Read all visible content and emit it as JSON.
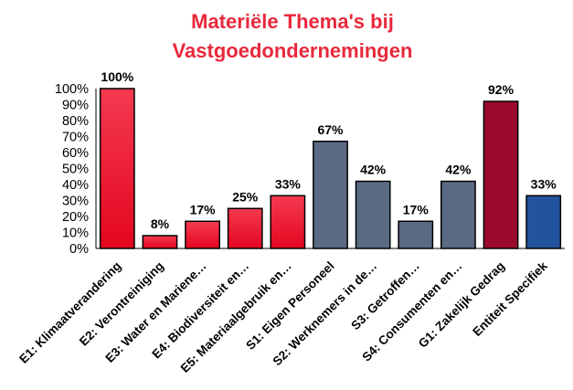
{
  "chart_data": {
    "type": "bar",
    "title_lines": [
      "Materiële Thema's bij",
      "Vastgoedondernemingen"
    ],
    "xlabel": "",
    "ylabel": "",
    "ylim": [
      0,
      100
    ],
    "y_ticks": [
      "0%",
      "10%",
      "20%",
      "30%",
      "40%",
      "50%",
      "60%",
      "70%",
      "80%",
      "90%",
      "100%"
    ],
    "categories": [
      "E1: Klimaatverandering",
      "E2: Verontreiniging",
      "E3: Water en Mariene…",
      "E4: Biodiversiteit en…",
      "E5: Materiaalgebruik en…",
      "S1: Eigen Personeel",
      "S2: Werknemers in de…",
      "S3: Getroffen…",
      "S4: Consumenten en…",
      "G1: Zakelijk Gedrag",
      "Entiteit Specifiek"
    ],
    "values": [
      100,
      8,
      17,
      25,
      33,
      67,
      42,
      17,
      42,
      92,
      33
    ],
    "data_labels": [
      "100%",
      "8%",
      "17%",
      "25%",
      "33%",
      "67%",
      "42%",
      "17%",
      "42%",
      "92%",
      "33%"
    ],
    "colors": {
      "environmental": "#ee1c3c",
      "social": "#5b6a83",
      "governance": "#9b0a2d",
      "entity": "#24539e"
    },
    "bar_colors": [
      "environmental",
      "environmental",
      "environmental",
      "environmental",
      "environmental",
      "social",
      "social",
      "social",
      "social",
      "governance",
      "entity"
    ],
    "grid": false
  }
}
